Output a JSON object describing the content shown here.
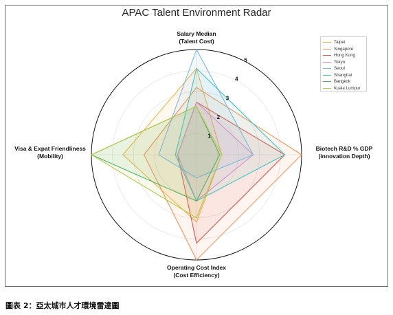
{
  "figure": {
    "caption": "圖表 2：亞太城市人才環境雷達圖"
  },
  "chart_data": {
    "type": "radar",
    "title": "APAC Talent Environment Radar",
    "axes": [
      [
        "Salary Median",
        "(Talent Cost)"
      ],
      [
        "Biotech R&D % GDP",
        "(innovation Depth)"
      ],
      [
        "Operating Cost Index",
        "(Cost Efficiency)"
      ],
      [
        "Visa & Expat Friendliness",
        "(Mobility)"
      ]
    ],
    "rlim": [
      0,
      5
    ],
    "ticks": [
      "1",
      "2",
      "3",
      "4",
      "5"
    ],
    "grid": true,
    "legend_position": "top-right",
    "series": [
      {
        "name": "Taipei",
        "color": "#f5b545",
        "values": [
          4.1,
          1.2,
          3.2,
          3.5
        ]
      },
      {
        "name": "Singapore",
        "color": "#f2945a",
        "values": [
          3.2,
          5.0,
          5.0,
          2.5
        ]
      },
      {
        "name": "Hong Kong",
        "color": "#e0584e",
        "values": [
          2.5,
          4.2,
          4.2,
          0.9
        ]
      },
      {
        "name": "Tokyo",
        "color": "#e58ac8",
        "values": [
          2.5,
          2.7,
          2.2,
          0.9
        ]
      },
      {
        "name": "Seoul",
        "color": "#7fb6e8",
        "values": [
          5.0,
          2.7,
          1.1,
          1.8
        ]
      },
      {
        "name": "Shanghai",
        "color": "#3fc6c0",
        "values": [
          4.1,
          4.2,
          2.2,
          1.0
        ]
      },
      {
        "name": "Bangkok",
        "color": "#48b560",
        "values": [
          2.3,
          1.1,
          2.2,
          5.0
        ]
      },
      {
        "name": "Kuala Lumpur",
        "color": "#b6c947",
        "values": [
          2.3,
          1.2,
          3.0,
          5.0
        ]
      }
    ]
  }
}
